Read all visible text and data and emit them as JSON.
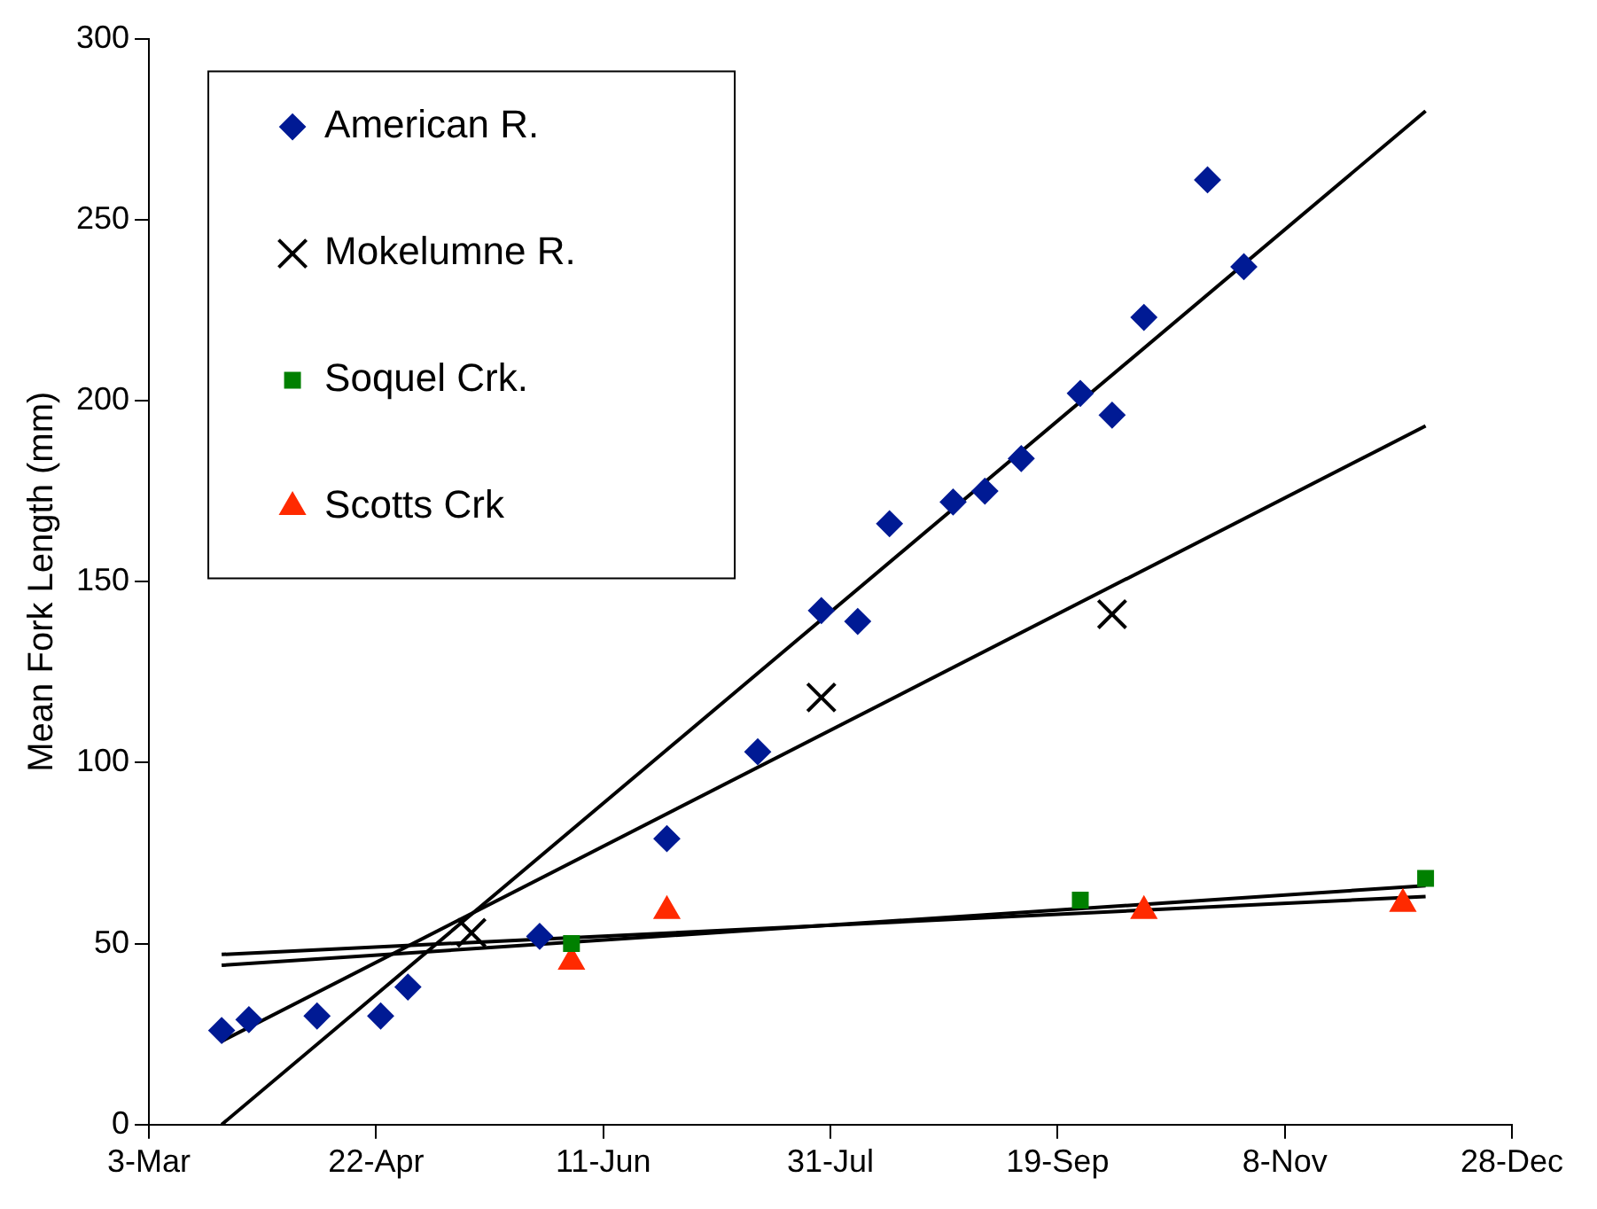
{
  "chart_data": {
    "type": "scatter",
    "ylabel": "Mean Fork Length (mm)",
    "legend": "top left",
    "grid": false,
    "xlim": [
      "--03-03",
      "--12-28"
    ],
    "xticks": [
      {
        "value": "--03-03",
        "label": "3-Mar"
      },
      {
        "value": "--04-22",
        "label": "22-Apr"
      },
      {
        "value": "--06-11",
        "label": "11-Jun"
      },
      {
        "value": "--07-31",
        "label": "31-Jul"
      },
      {
        "value": "--09-19",
        "label": "19-Sep"
      },
      {
        "value": "--11-08",
        "label": "8-Nov"
      },
      {
        "value": "--12-28",
        "label": "28-Dec"
      }
    ],
    "ylim": [
      0,
      300
    ],
    "yticks": [
      0,
      50,
      100,
      150,
      200,
      250,
      300
    ],
    "series": [
      {
        "name": "American R.",
        "color": "#001a94",
        "marker": "diamond",
        "x": [
          "--03-19",
          "--03-25",
          "--04-09",
          "--04-23",
          "--04-29",
          "--05-28",
          "--06-25",
          "--07-15",
          "--07-29",
          "--08-06",
          "--08-13",
          "--08-27",
          "--09-03",
          "--09-11",
          "--09-24",
          "--10-01",
          "--10-08",
          "--10-22",
          "--10-30"
        ],
        "values": [
          26,
          29,
          30,
          30,
          38,
          52,
          79,
          103,
          142,
          139,
          166,
          172,
          175,
          184,
          202,
          196,
          223,
          261,
          237
        ]
      },
      {
        "name": "Mokelumne R.",
        "color": "#000000",
        "marker": "cross",
        "x": [
          "--05-13",
          "--07-29",
          "--10-01"
        ],
        "values": [
          53,
          118,
          141
        ]
      },
      {
        "name": "Soquel Crk.",
        "color": "#008000",
        "marker": "square",
        "x": [
          "--06-04",
          "--09-24",
          "--12-09"
        ],
        "values": [
          50,
          62,
          68
        ]
      },
      {
        "name": "Scotts Crk",
        "color": "#ff2a00",
        "marker": "triangle",
        "x": [
          "--06-04",
          "--06-25",
          "--10-08",
          "--12-04"
        ],
        "values": [
          45,
          59,
          59,
          61
        ]
      },
      {
        "type": "line",
        "color": "#000000",
        "marker": "none",
        "x": [
          "--03-19",
          "--12-09"
        ],
        "values": [
          0,
          280
        ]
      },
      {
        "type": "line",
        "color": "#000000",
        "marker": "none",
        "x": [
          "--03-19",
          "--12-09"
        ],
        "values": [
          23,
          193
        ]
      },
      {
        "type": "line",
        "color": "#000000",
        "marker": "none",
        "x": [
          "--03-19",
          "--12-09"
        ],
        "values": [
          44,
          66
        ]
      },
      {
        "type": "line",
        "color": "#000000",
        "marker": "none",
        "x": [
          "--03-19",
          "--12-09"
        ],
        "values": [
          47,
          63
        ]
      }
    ]
  }
}
